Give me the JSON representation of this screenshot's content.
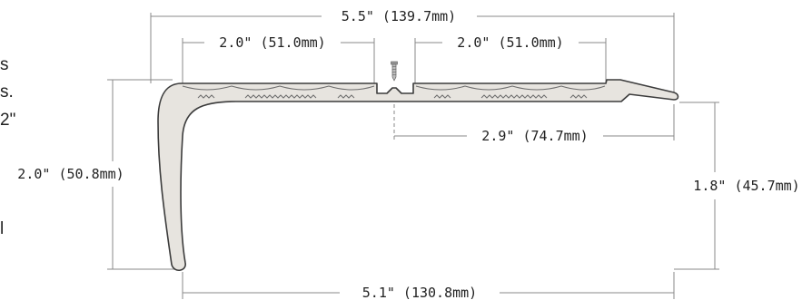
{
  "side_text": {
    "line1": "s",
    "line2": "s.",
    "line3": "2\"",
    "line4": "l"
  },
  "dimensions": {
    "overall_width": "5.5\" (139.7mm)",
    "tread_left": "2.0\" (51.0mm)",
    "tread_right": "2.0\" (51.0mm)",
    "screw_to_edge": "2.9\" (74.7mm)",
    "nose_height": "2.0\" (50.8mm)",
    "back_height": "1.8\" (45.7mm)",
    "bottom_width": "5.1\" (130.8mm)"
  },
  "colors": {
    "profile_fill": "#e7e4df",
    "profile_stroke": "#3c3c3c",
    "dimension_line": "#8a8a8a"
  }
}
